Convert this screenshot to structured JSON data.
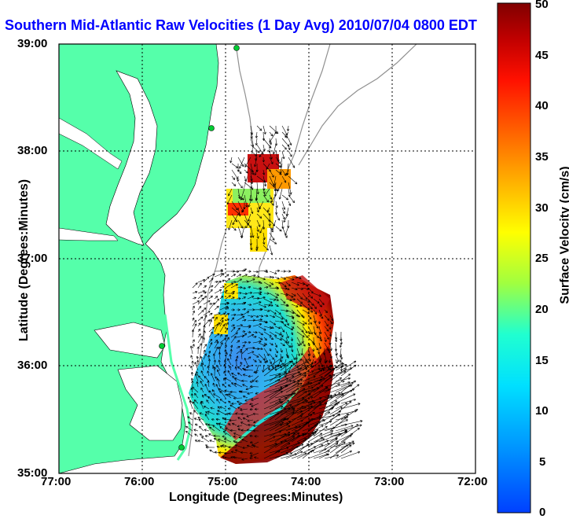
{
  "title": "Southern Mid-Atlantic Raw Velocities (1 Day Avg) 2010/07/04 0800 EDT",
  "map": {
    "xlabel": "Longitude (Degrees:Minutes)",
    "ylabel": "Latitude (Degrees:Minutes)",
    "x_ticks": [
      "77:00",
      "76:00",
      "75:00",
      "74:00",
      "73:00",
      "72:00"
    ],
    "y_ticks": [
      "39:00",
      "38:00",
      "37:00",
      "36:00",
      "35:00"
    ],
    "grid": "dotted"
  },
  "colorbar": {
    "label": "Surface Velocity (cm/s)",
    "ticks": [
      "50",
      "45",
      "40",
      "35",
      "30",
      "25",
      "20",
      "15",
      "10",
      "5",
      "0"
    ],
    "range": [
      0,
      50
    ]
  },
  "colors": {
    "land": "#55ffaa",
    "water": "#ffffff",
    "title": "#0000ff",
    "station": "#00cc33",
    "contour": "#909090"
  }
}
